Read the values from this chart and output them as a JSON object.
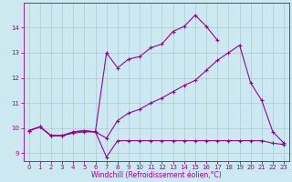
{
  "bg_color": "#cce8f0",
  "grid_color": "#aacccc",
  "line_color": "#990099",
  "line_width": 0.8,
  "marker": "+",
  "markersize": 3,
  "markeredgewidth": 0.8,
  "xlabel": "Windchill (Refroidissement éolien,°C)",
  "xlabel_fontsize": 5.5,
  "tick_fontsize": 5,
  "ylabel_ticks": [
    9,
    10,
    11,
    12,
    13,
    14
  ],
  "xlim": [
    -0.5,
    23.5
  ],
  "ylim": [
    8.7,
    15.0
  ],
  "xticks": [
    0,
    1,
    2,
    3,
    4,
    5,
    6,
    7,
    8,
    9,
    10,
    11,
    12,
    13,
    14,
    15,
    16,
    17,
    18,
    19,
    20,
    21,
    22,
    23
  ],
  "line1_x": [
    0,
    1,
    2,
    3,
    4,
    5,
    6,
    7,
    8,
    9,
    10,
    11,
    12,
    13,
    14,
    15,
    16,
    17
  ],
  "line1_y": [
    9.9,
    10.05,
    9.7,
    9.7,
    9.8,
    9.85,
    9.85,
    13.0,
    12.4,
    12.75,
    12.85,
    13.2,
    13.35,
    13.85,
    14.05,
    14.5,
    14.05,
    13.5
  ],
  "line2_x": [
    0,
    1,
    2,
    3,
    4,
    5,
    6,
    7,
    8,
    9,
    10,
    11,
    12,
    13,
    14,
    15,
    16,
    17,
    18,
    19,
    20,
    21,
    22,
    23
  ],
  "line2_y": [
    9.9,
    10.05,
    9.7,
    9.7,
    9.85,
    9.9,
    9.85,
    9.6,
    10.3,
    10.6,
    10.75,
    11.0,
    11.2,
    11.45,
    11.7,
    11.9,
    12.3,
    12.7,
    13.0,
    13.3,
    11.8,
    11.1,
    9.85,
    9.4
  ],
  "line3_x": [
    0,
    1,
    2,
    3,
    4,
    5,
    6,
    7,
    8,
    9,
    10,
    11,
    12,
    13,
    14,
    15,
    16,
    17,
    18,
    19,
    20,
    21,
    22,
    23
  ],
  "line3_y": [
    9.9,
    10.05,
    9.7,
    9.7,
    9.85,
    9.9,
    9.85,
    8.85,
    9.5,
    9.5,
    9.5,
    9.5,
    9.5,
    9.5,
    9.5,
    9.5,
    9.5,
    9.5,
    9.5,
    9.5,
    9.5,
    9.5,
    9.4,
    9.35
  ]
}
